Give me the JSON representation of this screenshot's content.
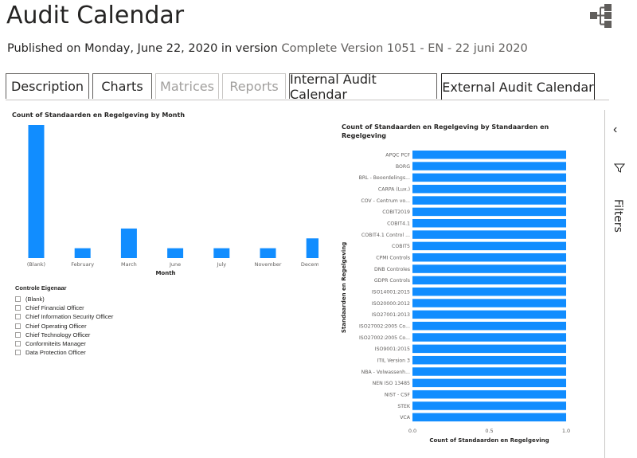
{
  "header": {
    "title": "Audit Calendar",
    "published_prefix": "Published on Monday, June 22, 2020 in version",
    "version": "Complete Version 1051 - EN - 22 juni 2020"
  },
  "tabs": [
    {
      "label": "Description",
      "state": "enabled"
    },
    {
      "label": "Charts",
      "state": "enabled"
    },
    {
      "label": "Matrices",
      "state": "disabled"
    },
    {
      "label": "Reports",
      "state": "disabled"
    },
    {
      "label": "Internal Audit Calendar",
      "state": "enabled"
    },
    {
      "label": "External Audit Calendar",
      "state": "active"
    }
  ],
  "filters_pane": {
    "label": "Filters",
    "icon": "chevron-left-icon",
    "filter_icon": "funnel-icon"
  },
  "slicer": {
    "title": "Controle Eigenaar",
    "items": [
      "(Blank)",
      "Chief Financial Officer",
      "Chief Information Security Officer",
      "Chief Operating Officer",
      "Chief Technology Officer",
      "Conformiteits Manager",
      "Data Protection Officer"
    ]
  },
  "colors": {
    "bar": "#118dff",
    "accent": "#252423"
  },
  "chart_data": [
    {
      "type": "bar",
      "title": "Count of Standaarden en Regelgeving by Month",
      "xlabel": "Month",
      "ylabel": "",
      "categories": [
        "(Blank)",
        "February",
        "March",
        "June",
        "July",
        "November",
        "December"
      ],
      "values": [
        27,
        2,
        6,
        2,
        2,
        2,
        4
      ],
      "ylim": [
        0,
        27
      ],
      "grid": false
    },
    {
      "type": "bar",
      "orientation": "horizontal",
      "title": "Count of Standaarden en Regelgeving by Standaarden en Regelgeving",
      "xlabel": "Count of Standaarden en Regelgeving",
      "ylabel": "Standaarden en Regelgeving",
      "categories": [
        "APQC PCF",
        "BORG",
        "BRL - Beoordelings...",
        "CARPA (Lux.)",
        "COV - Centrum vo...",
        "COBIT2019",
        "COBIT4.1",
        "COBIT4.1 Control ...",
        "COBIT5",
        "CPMI Controls",
        "DNB Controles",
        "GDPR Controls",
        "ISO14001:2015",
        "ISO20000:2012",
        "ISO27001:2013",
        "ISO27002:2005 Co...",
        "ISO27002:2005 Co...",
        "ISO9001:2015",
        "ITIL Version 3",
        "NBA - Volwassenh...",
        "NEN ISO 13485",
        "NIST - CSF",
        "STEK",
        "VCA"
      ],
      "values": [
        1,
        1,
        1,
        1,
        1,
        1,
        1,
        1,
        1,
        1,
        1,
        1,
        1,
        1,
        1,
        1,
        1,
        1,
        1,
        1,
        1,
        1,
        1,
        1
      ],
      "xlim": [
        0,
        1
      ],
      "xticks": [
        "0.0",
        "0.5",
        "1.0"
      ],
      "grid": false
    }
  ]
}
